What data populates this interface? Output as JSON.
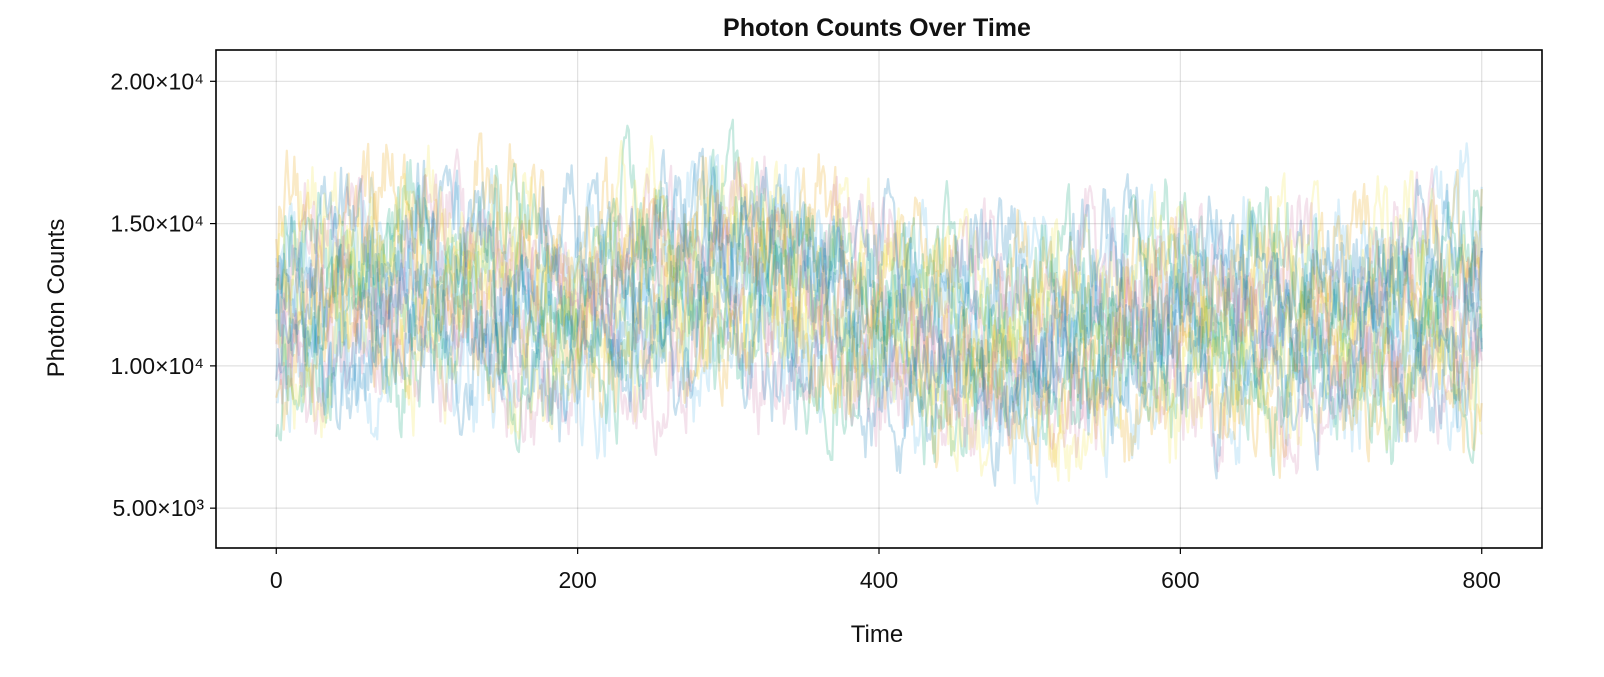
{
  "chart_data": {
    "type": "line",
    "title": "Photon Counts Over Time",
    "xlabel": "Time",
    "ylabel": "Photon Counts",
    "xlim": [
      -40,
      840
    ],
    "ylim": [
      3600,
      21100
    ],
    "x_ticks": [
      0,
      200,
      400,
      600,
      800
    ],
    "x_tick_labels": [
      "0",
      "200",
      "400",
      "600",
      "800"
    ],
    "y_ticks": [
      5000,
      10000,
      15000,
      20000
    ],
    "y_tick_labels": [
      "5.00×10³",
      "1.00×10⁴",
      "1.50×10⁴",
      "2.00×10⁴"
    ],
    "grid": true,
    "legend": "none",
    "x": [
      0,
      100,
      200,
      300,
      400,
      500,
      600,
      700,
      800
    ],
    "series": [
      {
        "color": "#56B4E9",
        "values": [
          11200,
          12800,
          11400,
          13300,
          11300,
          10700,
          12000,
          11000,
          12600
        ]
      },
      {
        "color": "#E69F00",
        "values": [
          12500,
          13600,
          12300,
          13900,
          11900,
          10200,
          11300,
          11700,
          11500
        ]
      },
      {
        "color": "#009E73",
        "values": [
          11800,
          12900,
          11900,
          13600,
          11600,
          10900,
          11800,
          11200,
          12200
        ]
      },
      {
        "color": "#F0E442",
        "values": [
          12100,
          13000,
          11700,
          13500,
          11800,
          10500,
          11600,
          11300,
          12000
        ]
      },
      {
        "color": "#CC79A7",
        "values": [
          11600,
          12600,
          11500,
          13100,
          11500,
          10600,
          11700,
          11100,
          11900
        ]
      },
      {
        "color": "#0072B2",
        "values": [
          11900,
          12700,
          11800,
          13400,
          11400,
          10800,
          11900,
          11400,
          12300
        ]
      }
    ]
  }
}
